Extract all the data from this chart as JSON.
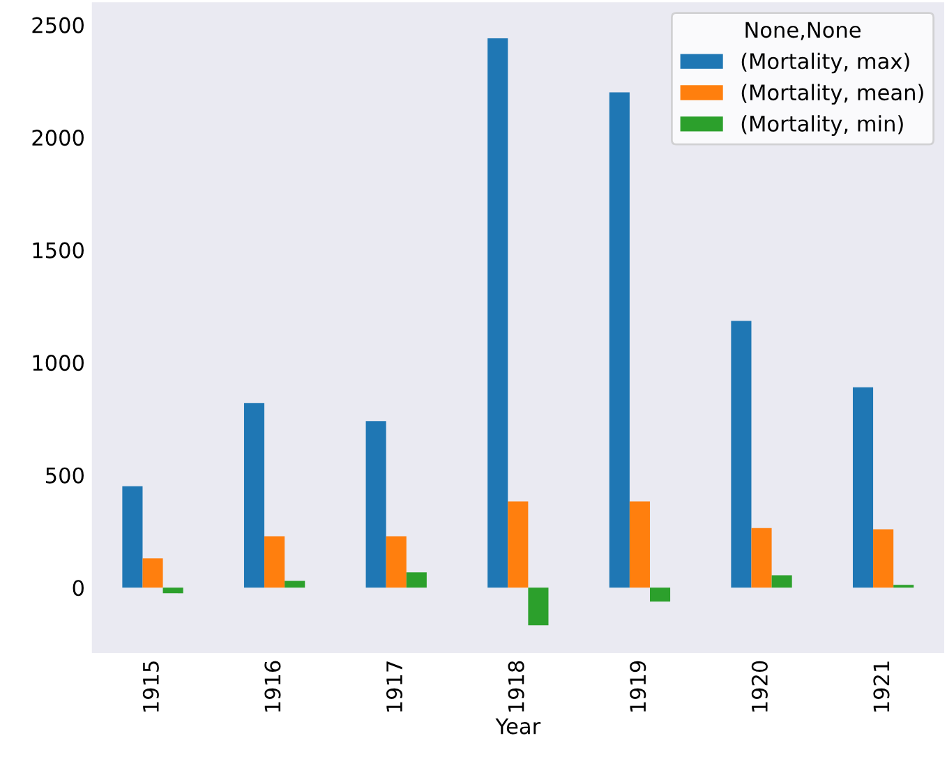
{
  "chart_data": {
    "type": "bar",
    "xlabel": "Year",
    "legend_title": "None,None",
    "legend": "top right",
    "grid": false,
    "categories": [
      "1915",
      "1916",
      "1917",
      "1918",
      "1919",
      "1920",
      "1921"
    ],
    "series": [
      {
        "name": "(Mortality, max)",
        "color": "#1f77b4",
        "values": [
          450,
          820,
          740,
          2440,
          2200,
          1185,
          890
        ]
      },
      {
        "name": "(Mortality, mean)",
        "color": "#ff7f0e",
        "values": [
          130,
          228,
          228,
          383,
          383,
          265,
          259
        ]
      },
      {
        "name": "(Mortality, min)",
        "color": "#2ca02c",
        "values": [
          -25,
          30,
          68,
          -167,
          -62,
          55,
          12
        ]
      }
    ],
    "ylim": [
      -290,
      2600
    ],
    "yticks": [
      0,
      500,
      1000,
      1500,
      2000,
      2500
    ]
  }
}
